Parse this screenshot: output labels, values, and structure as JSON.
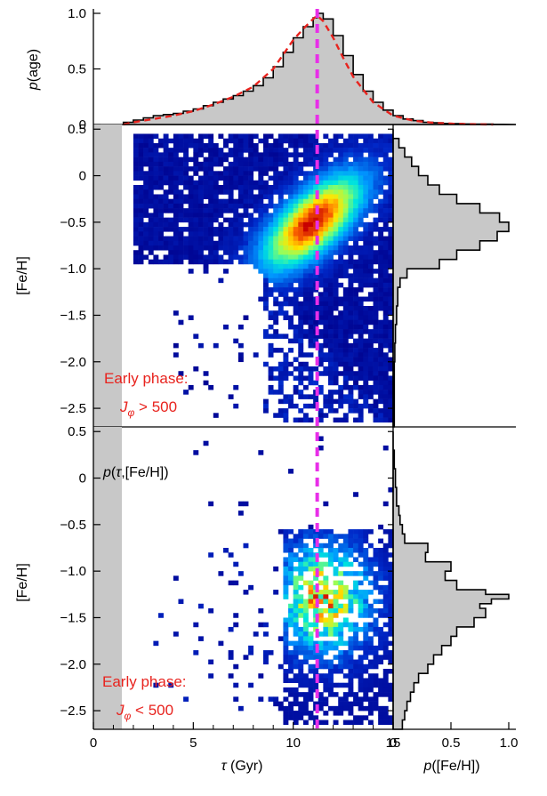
{
  "chart_data": [
    {
      "type": "area",
      "panel": "top-age-marginal",
      "ylabel_italic": "p",
      "ylabel_rest": "(age)",
      "xlim": [
        0,
        20
      ],
      "ylim": [
        0,
        1.0
      ],
      "yticks": [
        "0",
        "0.5",
        "1.0"
      ],
      "ytick_values": [
        0,
        0.5,
        1.0
      ],
      "histogram": {
        "x": [
          1.5,
          2,
          2.5,
          3,
          3.5,
          4,
          4.5,
          5,
          5.5,
          6,
          6.5,
          7,
          7.5,
          8,
          8.5,
          9,
          9.5,
          10,
          10.5,
          11,
          11.2,
          11.5,
          12,
          12.5,
          13,
          13.5,
          14,
          14.5,
          15,
          15.5,
          16,
          16.5,
          17,
          17.5,
          18,
          18.5,
          19,
          19.5,
          20
        ],
        "p": [
          0.02,
          0.04,
          0.06,
          0.08,
          0.09,
          0.1,
          0.12,
          0.14,
          0.17,
          0.2,
          0.23,
          0.26,
          0.3,
          0.35,
          0.42,
          0.52,
          0.65,
          0.78,
          0.88,
          0.96,
          1.0,
          0.95,
          0.8,
          0.62,
          0.45,
          0.3,
          0.2,
          0.13,
          0.08,
          0.05,
          0.035,
          0.02,
          0.015,
          0.01,
          0.008,
          0.005,
          0.004,
          0.003,
          0.002
        ]
      },
      "fit_curve": {
        "x": [
          1.5,
          2,
          3,
          4,
          5,
          6,
          7,
          8,
          9,
          10,
          10.5,
          11,
          11.2,
          11.5,
          12,
          12.5,
          13,
          14,
          15,
          16,
          17,
          18,
          19,
          20
        ],
        "p": [
          0.0,
          0.02,
          0.05,
          0.08,
          0.12,
          0.18,
          0.25,
          0.34,
          0.5,
          0.76,
          0.86,
          0.95,
          0.98,
          0.93,
          0.78,
          0.6,
          0.43,
          0.2,
          0.08,
          0.035,
          0.015,
          0.007,
          0.003,
          0.0
        ]
      },
      "reference_line_age": 11.2,
      "colors": {
        "histogram_fill": "#c8c8c8",
        "fit": "#e8231e",
        "reference": "#e82fe8"
      }
    },
    {
      "type": "heatmap",
      "panel": "middle-high-Jphi",
      "ylabel": "[Fe/H]",
      "xlim": [
        0,
        15
      ],
      "ylim": [
        -2.7,
        0.55
      ],
      "yticks": [
        "0.5",
        "0",
        "−0.5",
        "−1.0",
        "−1.5",
        "−2.0",
        "−2.5"
      ],
      "ytick_values": [
        0.5,
        0,
        -0.5,
        -1.0,
        -1.5,
        -2.0,
        -2.5
      ],
      "annotation_line1": "Early phase:",
      "annotation_line2_main": "J",
      "annotation_line2_sub": "φ",
      "annotation_line2_rest": " > 500",
      "density_peak": {
        "age": 11.0,
        "feh": -0.5
      },
      "shaded_age_range": [
        0,
        1.5
      ],
      "marginal_feh": {
        "feh": [
          0.5,
          0.4,
          0.3,
          0.2,
          0.1,
          0,
          -0.1,
          -0.2,
          -0.3,
          -0.4,
          -0.5,
          -0.6,
          -0.7,
          -0.8,
          -0.9,
          -1.0,
          -1.1,
          -1.2,
          -1.4,
          -1.6,
          -1.8,
          -2.0,
          -2.2,
          -2.4,
          -2.6
        ],
        "p": [
          0.0,
          0.05,
          0.1,
          0.16,
          0.22,
          0.3,
          0.4,
          0.55,
          0.75,
          0.92,
          1.0,
          0.9,
          0.75,
          0.55,
          0.4,
          0.12,
          0.06,
          0.04,
          0.03,
          0.02,
          0.015,
          0.01,
          0.01,
          0.01,
          0.01
        ]
      }
    },
    {
      "type": "heatmap",
      "panel": "bottom-low-Jphi",
      "ylabel": "[Fe/H]",
      "xlabel_italic": "τ",
      "xlabel_rest": " (Gyr)",
      "xlim": [
        0,
        15
      ],
      "ylim": [
        -2.7,
        0.55
      ],
      "xticks": [
        "0",
        "5",
        "10",
        "15"
      ],
      "xtick_values": [
        0,
        5,
        10,
        15
      ],
      "yticks": [
        "0.5",
        "0",
        "−0.5",
        "−1.0",
        "−1.5",
        "−2.0",
        "−2.5"
      ],
      "ytick_values": [
        0.5,
        0,
        -0.5,
        -1.0,
        -1.5,
        -2.0,
        -2.5
      ],
      "inner_label_italic": "p",
      "inner_label_tau": "τ",
      "inner_label_rest": ",[Fe/H])",
      "annotation_line1": "Early phase:",
      "annotation_line2_main": "J",
      "annotation_line2_sub": "φ",
      "annotation_line2_rest": " < 500",
      "density_peak": {
        "age": 11.5,
        "feh": -1.3
      },
      "shaded_age_range": [
        0,
        1.5
      ],
      "marginal_feh": {
        "feh": [
          0.5,
          0.4,
          0.3,
          0.2,
          0.1,
          0,
          -0.1,
          -0.2,
          -0.3,
          -0.4,
          -0.5,
          -0.6,
          -0.7,
          -0.8,
          -0.9,
          -1.0,
          -1.1,
          -1.2,
          -1.25,
          -1.3,
          -1.35,
          -1.4,
          -1.5,
          -1.6,
          -1.7,
          -1.8,
          -1.9,
          -2.0,
          -2.1,
          -2.2,
          -2.3,
          -2.4,
          -2.5,
          -2.6
        ],
        "p": [
          0.0,
          0.0,
          0.01,
          0.01,
          0.02,
          0.02,
          0.03,
          0.03,
          0.05,
          0.06,
          0.08,
          0.1,
          0.3,
          0.28,
          0.5,
          0.45,
          0.55,
          0.8,
          1.0,
          0.85,
          0.75,
          0.8,
          0.7,
          0.55,
          0.5,
          0.42,
          0.35,
          0.3,
          0.22,
          0.18,
          0.15,
          0.12,
          0.1,
          0.08
        ]
      },
      "marginal_xlabel_italic": "p",
      "marginal_xlabel_rest": "([Fe/H])",
      "marginal_xticks": [
        "0",
        "0.5",
        "1.0"
      ],
      "marginal_xtick_values": [
        0,
        0.5,
        1.0
      ]
    }
  ],
  "reference_line_age": 11.2,
  "colors": {
    "reference_line": "#e82fe8",
    "annotation": "#e8231e",
    "shade": "#c8c8c8",
    "axes": "#000000"
  }
}
